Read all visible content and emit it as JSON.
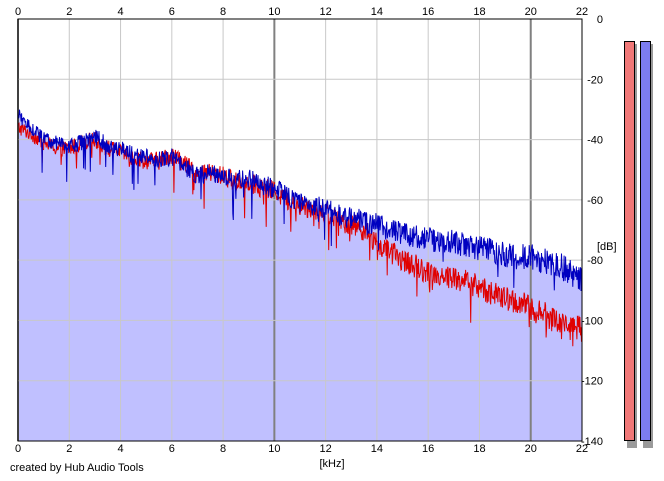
{
  "footer": {
    "credit": "created by Hub Audio Tools"
  },
  "meters": {
    "left": {
      "color": "#f07878",
      "level": 1.0
    },
    "right": {
      "color": "#7c7cf0",
      "level": 1.0
    }
  },
  "chart_data": {
    "type": "line",
    "xlabel": "[kHz]",
    "ylabel": "[dB]",
    "xlim": [
      0,
      22
    ],
    "ylim": [
      -140,
      0
    ],
    "xticks": [
      0,
      2,
      4,
      6,
      8,
      10,
      12,
      14,
      16,
      18,
      20,
      22
    ],
    "yticks": [
      0,
      -20,
      -40,
      -60,
      -80,
      -100,
      -120,
      -140
    ],
    "ytick_labels": [
      "0",
      "-20",
      "-40",
      "-60",
      "-80",
      "-100",
      "-120",
      "-140"
    ],
    "grid": true,
    "colors": {
      "plot_bg": "#ffffff",
      "fill": "#c0c0ff",
      "grid_minor": "#c8c8c8",
      "grid_major": "#808080"
    },
    "series": [
      {
        "color": "#e00000",
        "x": [
          0.0,
          0.5,
          1.0,
          1.5,
          2.0,
          2.5,
          3.0,
          3.5,
          4.0,
          4.5,
          5.0,
          5.5,
          6.0,
          6.5,
          7.0,
          7.5,
          8.0,
          8.5,
          9.0,
          9.5,
          10.0,
          10.5,
          11.0,
          11.5,
          12.0,
          12.5,
          13.0,
          13.5,
          14.0,
          14.5,
          15.0,
          15.5,
          16.0,
          16.5,
          17.0,
          17.5,
          18.0,
          18.5,
          19.0,
          19.5,
          20.0,
          20.5,
          21.0,
          21.5,
          22.0
        ],
        "y": [
          -36,
          -38,
          -41,
          -43,
          -43,
          -41,
          -40,
          -43,
          -44,
          -46,
          -47,
          -47,
          -45,
          -48,
          -52,
          -51,
          -52,
          -54,
          -54,
          -56,
          -57,
          -60,
          -62,
          -63,
          -64,
          -67,
          -68,
          -70,
          -75,
          -77,
          -80,
          -82,
          -84,
          -85,
          -86,
          -87,
          -89,
          -91,
          -93,
          -94,
          -96,
          -98,
          -100,
          -102,
          -103
        ]
      },
      {
        "color": "#0000c0",
        "x": [
          0.0,
          0.5,
          1.0,
          1.5,
          2.0,
          2.5,
          3.0,
          3.5,
          4.0,
          4.5,
          5.0,
          5.5,
          6.0,
          6.5,
          7.0,
          7.5,
          8.0,
          8.5,
          9.0,
          9.5,
          10.0,
          10.5,
          11.0,
          11.5,
          12.0,
          12.5,
          13.0,
          13.5,
          14.0,
          14.5,
          15.0,
          15.5,
          16.0,
          16.5,
          17.0,
          17.5,
          18.0,
          18.5,
          19.0,
          19.5,
          20.0,
          20.5,
          21.0,
          21.5,
          22.0
        ],
        "y": [
          -32,
          -36,
          -40,
          -41,
          -42,
          -41,
          -39,
          -42,
          -43,
          -45,
          -46,
          -47,
          -46,
          -49,
          -52,
          -51,
          -52,
          -53,
          -53,
          -55,
          -56,
          -59,
          -61,
          -62,
          -63,
          -65,
          -66,
          -67,
          -68,
          -70,
          -71,
          -72,
          -73,
          -74,
          -74,
          -75,
          -76,
          -77,
          -78,
          -79,
          -79,
          -80,
          -81,
          -84,
          -86
        ]
      }
    ]
  }
}
